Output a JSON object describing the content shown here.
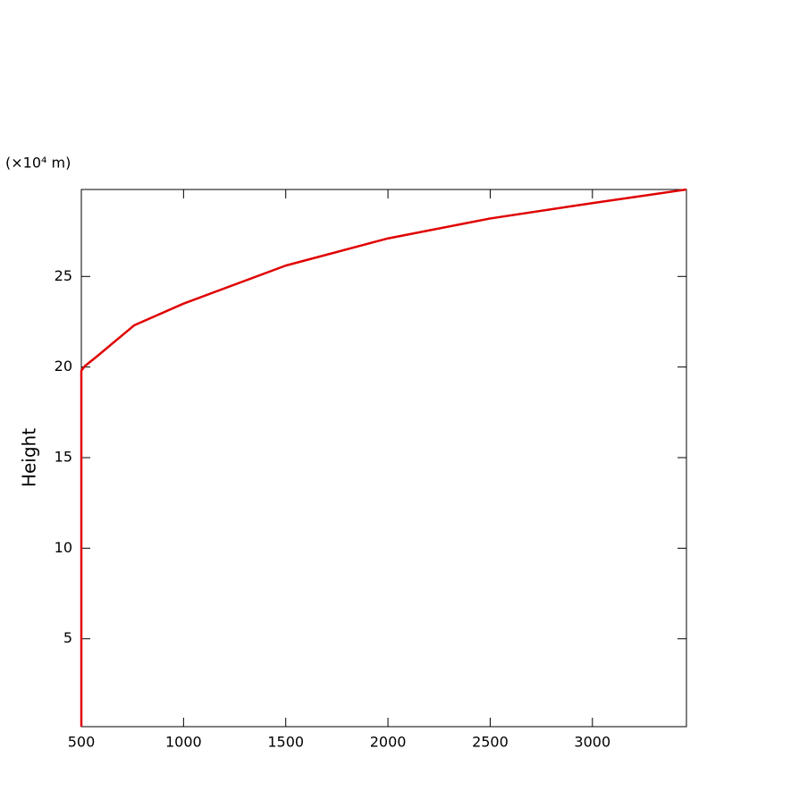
{
  "chart_data": {
    "type": "line",
    "unit_label": "(×10⁴ m)",
    "y_label": "Height",
    "x": [
      500,
      500,
      500,
      517,
      583,
      758,
      1000,
      1500,
      2000,
      2500,
      3000,
      3460
    ],
    "series": [
      {
        "color": "#e00000",
        "values": [
          0.15,
          10,
          19.8,
          20.05,
          20.65,
          22.3,
          23.5,
          25.6,
          27.1,
          28.2,
          29.05,
          29.8
        ]
      }
    ],
    "xlim": [
      500,
      3460
    ],
    "xticks": [
      500,
      1000,
      1500,
      2000,
      2500,
      3000
    ],
    "ylim": [
      0.15,
      29.8
    ],
    "yticks": [
      5,
      10,
      15,
      20,
      25
    ],
    "grid": false
  }
}
